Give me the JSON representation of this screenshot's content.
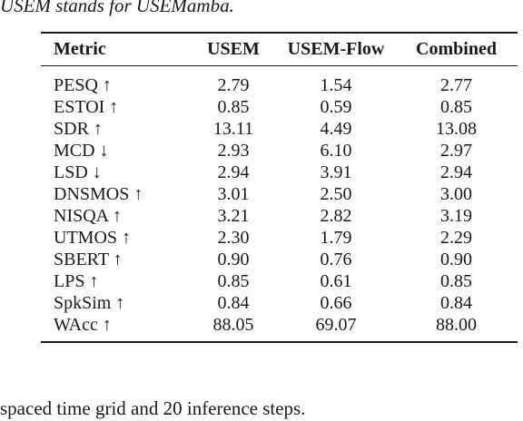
{
  "caption": "USEM stands for USEMamba.",
  "table": {
    "headers": [
      "Metric",
      "USEM",
      "USEM-Flow",
      "Combined"
    ],
    "rows": [
      {
        "metric": "PESQ ↑",
        "usem": "2.79",
        "usem_flow": "1.54",
        "combined": "2.77"
      },
      {
        "metric": "ESTOI ↑",
        "usem": "0.85",
        "usem_flow": "0.59",
        "combined": "0.85"
      },
      {
        "metric": "SDR ↑",
        "usem": "13.11",
        "usem_flow": "4.49",
        "combined": "13.08"
      },
      {
        "metric": "MCD ↓",
        "usem": "2.93",
        "usem_flow": "6.10",
        "combined": "2.97"
      },
      {
        "metric": "LSD ↓",
        "usem": "2.94",
        "usem_flow": "3.91",
        "combined": "2.94"
      },
      {
        "metric": "DNSMOS ↑",
        "usem": "3.01",
        "usem_flow": "2.50",
        "combined": "3.00"
      },
      {
        "metric": "NISQA ↑",
        "usem": "3.21",
        "usem_flow": "2.82",
        "combined": "3.19"
      },
      {
        "metric": "UTMOS ↑",
        "usem": "2.30",
        "usem_flow": "1.79",
        "combined": "2.29"
      },
      {
        "metric": "SBERT ↑",
        "usem": "0.90",
        "usem_flow": "0.76",
        "combined": "0.90"
      },
      {
        "metric": "LPS ↑",
        "usem": "0.85",
        "usem_flow": "0.61",
        "combined": "0.85"
      },
      {
        "metric": "SpkSim ↑",
        "usem": "0.84",
        "usem_flow": "0.66",
        "combined": "0.84"
      },
      {
        "metric": "WAcc ↑",
        "usem": "88.05",
        "usem_flow": "69.07",
        "combined": "88.00"
      }
    ]
  },
  "footer_text": "spaced time grid and 20 inference steps."
}
